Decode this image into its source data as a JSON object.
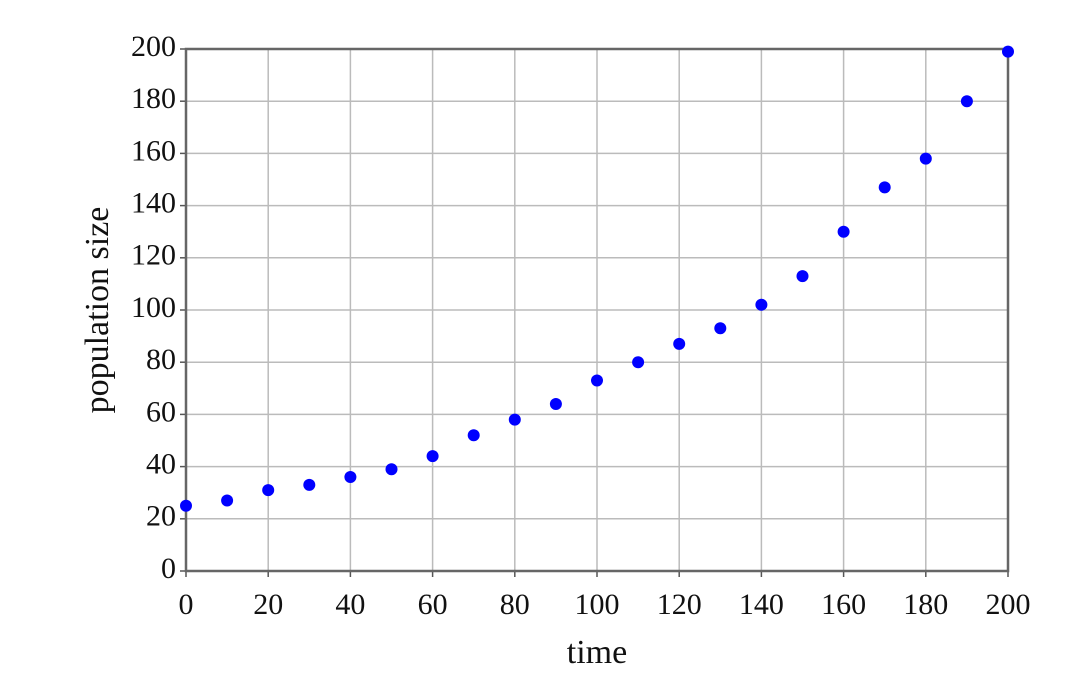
{
  "chart_data": {
    "type": "scatter",
    "xlabel": "time",
    "ylabel": "population size",
    "x": [
      0,
      10,
      20,
      30,
      40,
      50,
      60,
      70,
      80,
      90,
      100,
      110,
      120,
      130,
      140,
      150,
      160,
      170,
      180,
      190,
      200
    ],
    "values": [
      25,
      27,
      31,
      33,
      36,
      39,
      44,
      52,
      58,
      64,
      73,
      80,
      87,
      93,
      102,
      113,
      130,
      147,
      158,
      180,
      199
    ],
    "color": "#0000ff",
    "xlim": [
      0,
      200
    ],
    "xticks": [
      0,
      20,
      40,
      60,
      80,
      100,
      120,
      140,
      160,
      180,
      200
    ],
    "ylim": [
      0,
      200
    ],
    "yticks": [
      0,
      20,
      40,
      60,
      80,
      100,
      120,
      140,
      160,
      180,
      200
    ],
    "grid": true
  }
}
